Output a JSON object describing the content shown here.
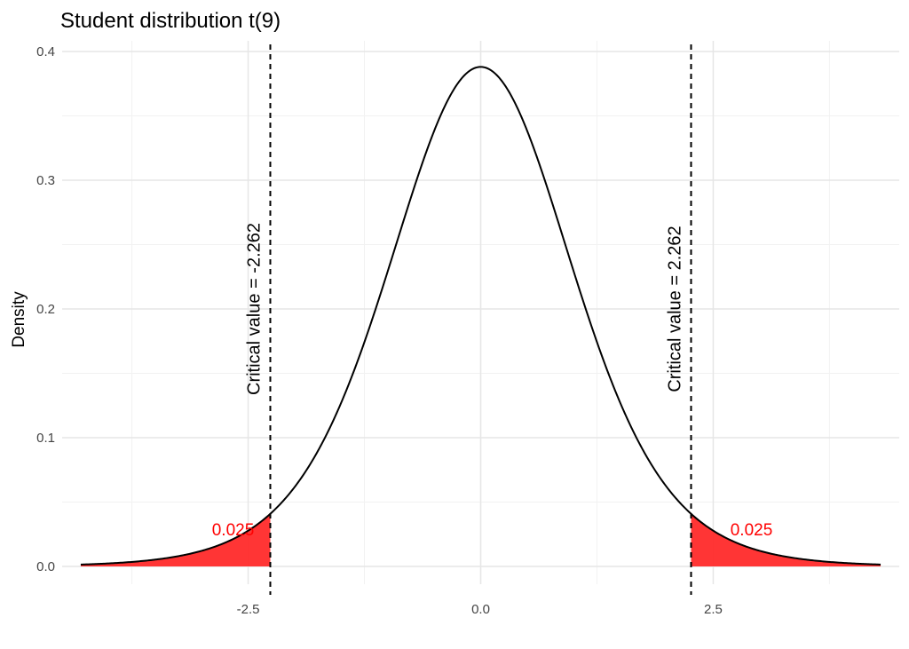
{
  "chart_data": {
    "type": "area",
    "title": "Student distribution t(9)",
    "xlabel": "",
    "ylabel": "Density",
    "distribution": "student-t",
    "df": 9,
    "xlim": [
      -4.5,
      4.5
    ],
    "ylim": [
      0,
      0.4
    ],
    "x_ticks": [
      -2.5,
      0.0,
      2.5
    ],
    "x_tick_labels": [
      "-2.5",
      "0.0",
      "2.5"
    ],
    "y_ticks": [
      0.0,
      0.1,
      0.2,
      0.3,
      0.4
    ],
    "y_tick_labels": [
      "0.0",
      "0.1",
      "0.2",
      "0.3",
      "0.4"
    ],
    "grid": true,
    "critical_values": [
      {
        "value": -2.262,
        "label": "Critical value = -2.262"
      },
      {
        "value": 2.262,
        "label": "Critical value = 2.262"
      }
    ],
    "tail_areas": [
      {
        "from": -4.3,
        "to": -2.262,
        "label": "0.025"
      },
      {
        "from": 2.262,
        "to": 4.3,
        "label": "0.025"
      }
    ],
    "colors": {
      "curve": "#000000",
      "tail_fill": "#ff2a2a",
      "tail_label": "#ff0000",
      "grid_major": "#e6e6e6",
      "grid_minor": "#f2f2f2"
    }
  }
}
